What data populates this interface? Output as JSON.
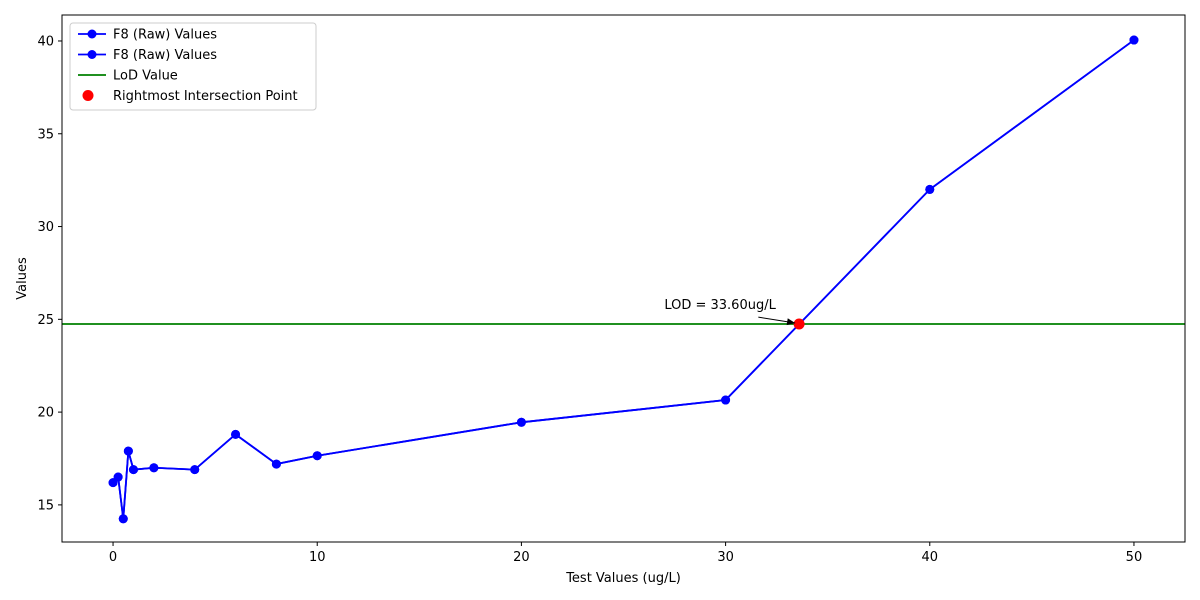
{
  "chart_data": {
    "type": "line",
    "xlabel": "Test Values (ug/L)",
    "ylabel": "Values",
    "xlim": [
      -2.5,
      52.5
    ],
    "ylim": [
      13.0,
      41.4
    ],
    "xticks": [
      0,
      10,
      20,
      30,
      40,
      50
    ],
    "yticks": [
      15,
      20,
      25,
      30,
      35,
      40
    ],
    "grid": false,
    "legend_position": "upper-left",
    "series": [
      {
        "name": "F8 (Raw) Values",
        "kind": "line-marker",
        "color": "#0000ff",
        "x": [
          0,
          0.25,
          0.5,
          0.75,
          1,
          2,
          4,
          6,
          8,
          10,
          20,
          30,
          40,
          50
        ],
        "y": [
          16.2,
          16.5,
          14.25,
          17.9,
          16.9,
          17.0,
          16.9,
          18.8,
          17.2,
          17.65,
          19.45,
          20.65,
          32.0,
          40.05
        ]
      },
      {
        "name": "F8 (Raw) Values",
        "kind": "line-marker",
        "color": "#0000ff",
        "x": [
          0,
          0.25,
          0.5,
          0.75,
          1,
          2,
          4,
          6,
          8,
          10,
          20,
          30,
          40,
          50
        ],
        "y": [
          16.2,
          16.5,
          14.25,
          17.9,
          16.9,
          17.0,
          16.9,
          18.8,
          17.2,
          17.65,
          19.45,
          20.65,
          32.0,
          40.05
        ]
      },
      {
        "name": "LoD Value",
        "kind": "hline",
        "color": "#008000",
        "y": 24.75
      },
      {
        "name": "Rightmost Intersection Point",
        "kind": "point",
        "color": "#ff0000",
        "x": 33.6,
        "y": 24.75
      }
    ],
    "annotation": {
      "text": "LOD = 33.60ug/L",
      "x": 33.6,
      "y": 24.75,
      "text_x": 27.0,
      "text_y": 25.55
    }
  }
}
